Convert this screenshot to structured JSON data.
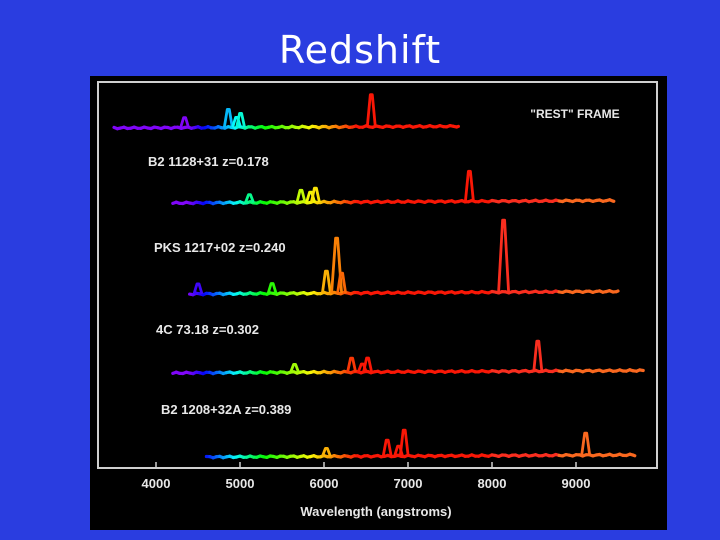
{
  "slide": {
    "title": "Redshift"
  },
  "chart_data": {
    "type": "line",
    "title": "",
    "xlabel": "Wavelength (angstroms)",
    "ylabel": "",
    "xlim": [
      3500,
      9900
    ],
    "xticks": [
      4000,
      5000,
      6000,
      7000,
      8000,
      9000
    ],
    "grid": false,
    "series": [
      {
        "name": "\"REST\" FRAME",
        "z": 0,
        "xrange": [
          3500,
          7600
        ],
        "lines": [
          {
            "x": 4340,
            "h": 10
          },
          {
            "x": 4861,
            "h": 18
          },
          {
            "x": 4959,
            "h": 10
          },
          {
            "x": 5007,
            "h": 14
          },
          {
            "x": 6563,
            "h": 32
          }
        ]
      },
      {
        "name": "B2 1128+31  z=0.178",
        "z": 0.178,
        "xrange": [
          4200,
          9450
        ],
        "lines": [
          {
            "x": 5113,
            "h": 8
          },
          {
            "x": 5726,
            "h": 12
          },
          {
            "x": 5840,
            "h": 10
          },
          {
            "x": 5898,
            "h": 14
          },
          {
            "x": 7731,
            "h": 30
          }
        ]
      },
      {
        "name": "PKS 1217+02  z=0.240",
        "z": 0.24,
        "xrange": [
          4400,
          9500
        ],
        "lines": [
          {
            "x": 4500,
            "h": 10
          },
          {
            "x": 5382,
            "h": 10
          },
          {
            "x": 6028,
            "h": 22
          },
          {
            "x": 6150,
            "h": 55
          },
          {
            "x": 6209,
            "h": 20
          },
          {
            "x": 8138,
            "h": 72
          }
        ]
      },
      {
        "name": "4C 73.18  z=0.302",
        "z": 0.302,
        "xrange": [
          4200,
          9800
        ],
        "lines": [
          {
            "x": 5650,
            "h": 8
          },
          {
            "x": 6328,
            "h": 14
          },
          {
            "x": 6456,
            "h": 8
          },
          {
            "x": 6519,
            "h": 14
          },
          {
            "x": 8545,
            "h": 30
          }
        ]
      },
      {
        "name": "B2 1208+32A  z=0.389",
        "z": 0.389,
        "xrange": [
          4600,
          9700
        ],
        "lines": [
          {
            "x": 6029,
            "h": 8
          },
          {
            "x": 6752,
            "h": 16
          },
          {
            "x": 6888,
            "h": 10
          },
          {
            "x": 6955,
            "h": 26
          },
          {
            "x": 9116,
            "h": 22
          }
        ]
      }
    ]
  }
}
